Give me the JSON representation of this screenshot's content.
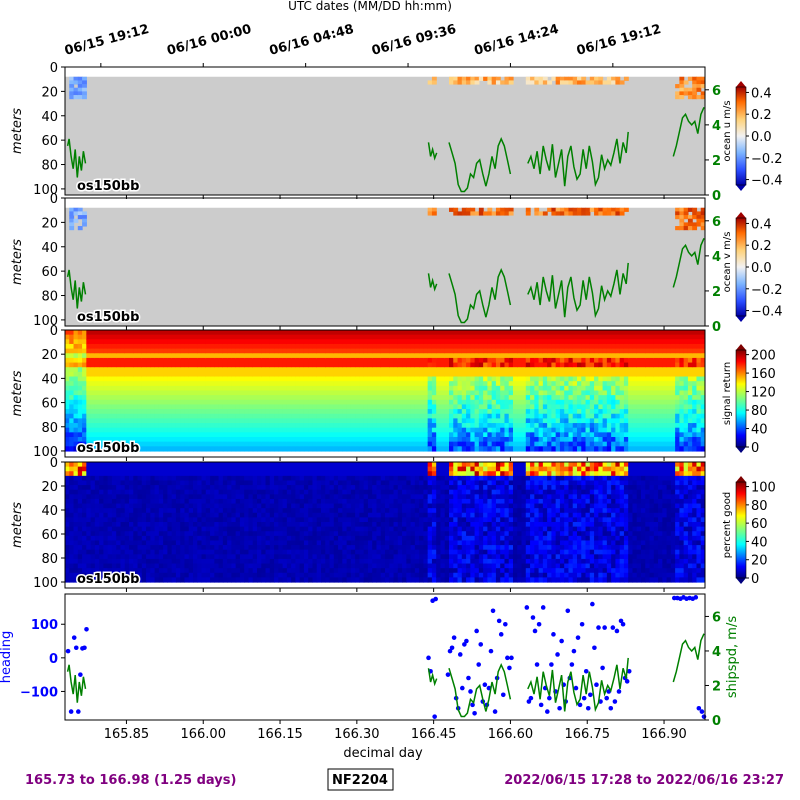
{
  "header": {
    "utc_label": "UTC dates (MM/DD hh:mm)"
  },
  "colors": {
    "axis": "#000000",
    "green": "#008000",
    "blue": "#0000ff",
    "purple": "#800080",
    "mask": "#cccccc"
  },
  "chart_data": {
    "type": "heatmap",
    "xlabel": "decimal day",
    "xlim": [
      165.73,
      166.98
    ],
    "x_ticks": [
      "165.85",
      "166.00",
      "166.15",
      "166.30",
      "166.45",
      "166.60",
      "166.75",
      "166.90"
    ],
    "x_tick_values": [
      165.85,
      166.0,
      166.15,
      166.3,
      166.45,
      166.6,
      166.75,
      166.9
    ],
    "utc_ticks": [
      "06/15 19:12",
      "06/16 00:00",
      "06/16 04:48",
      "06/16 09:36",
      "06/16 14:24",
      "06/16 19:12"
    ],
    "utc_tick_values": [
      165.8,
      166.0,
      166.2,
      166.4,
      166.6,
      166.8
    ],
    "depth": {
      "ylabel": "meters",
      "ylim": [
        105,
        0
      ],
      "ticks": [
        "0",
        "20",
        "40",
        "60",
        "80",
        "100"
      ],
      "tick_values": [
        0,
        20,
        40,
        60,
        80,
        100
      ]
    },
    "instrument": "os150bb",
    "segments": [
      [
        165.735,
        165.773
      ],
      [
        166.438,
        166.457
      ],
      [
        166.477,
        166.605
      ],
      [
        166.632,
        166.832
      ],
      [
        166.918,
        166.98
      ]
    ],
    "panels": [
      {
        "name": "ocean u",
        "colorbar_label": "ocean u m/s",
        "colorbar_ticks": [
          "0.4",
          "0.2",
          "0.0",
          "−0.2",
          "−0.4"
        ],
        "colorbar_values": [
          0.4,
          0.2,
          0.0,
          -0.2,
          -0.4
        ],
        "clim": [
          -0.45,
          0.45
        ],
        "colormap": "coolwarm"
      },
      {
        "name": "ocean v",
        "colorbar_label": "ocean v m/s",
        "colorbar_ticks": [
          "0.4",
          "0.2",
          "0.0",
          "−0.2",
          "−0.4"
        ],
        "colorbar_values": [
          0.4,
          0.2,
          0.0,
          -0.2,
          -0.4
        ],
        "clim": [
          -0.45,
          0.45
        ],
        "colormap": "coolwarm"
      },
      {
        "name": "signal return",
        "colorbar_label": "signal return",
        "colorbar_ticks": [
          "200",
          "160",
          "120",
          "80",
          "40",
          "0"
        ],
        "colorbar_values": [
          200,
          160,
          120,
          80,
          40,
          0
        ],
        "clim": [
          0,
          210
        ],
        "colormap": "jet"
      },
      {
        "name": "percent good",
        "colorbar_label": "percent good",
        "colorbar_ticks": [
          "100",
          "80",
          "60",
          "40",
          "20",
          "0"
        ],
        "colorbar_values": [
          100,
          80,
          60,
          40,
          20,
          0
        ],
        "clim": [
          0,
          105
        ],
        "colormap": "jet"
      }
    ],
    "shipspeed": {
      "ylabel": "shipspd, m/s",
      "ylim": [
        0,
        7.3
      ],
      "ticks": [
        "6",
        "4",
        "2",
        "0"
      ],
      "tick_values": [
        6,
        4,
        2,
        0
      ],
      "series": [
        {
          "x": [
            165.735,
            165.738,
            165.742,
            165.746,
            165.75,
            165.754,
            165.758,
            165.762,
            165.766,
            165.77
          ],
          "y": [
            2.8,
            3.2,
            2.2,
            1.5,
            2.6,
            1.0,
            2.2,
            1.4,
            2.5,
            1.8
          ]
        },
        {
          "x": [
            166.44,
            166.444,
            166.448,
            166.452,
            166.456
          ],
          "y": [
            3.0,
            2.2,
            2.6,
            2.1,
            2.4
          ]
        },
        {
          "x": [
            166.48,
            166.486,
            166.492,
            166.498,
            166.504,
            166.51,
            166.516,
            166.522,
            166.528,
            166.534,
            166.54,
            166.546,
            166.552,
            166.558,
            166.564,
            166.57,
            166.576,
            166.582,
            166.588,
            166.594,
            166.6
          ],
          "y": [
            3.0,
            2.4,
            1.8,
            0.6,
            0.2,
            0.2,
            0.4,
            1.2,
            1.0,
            1.8,
            2.0,
            1.2,
            0.5,
            1.2,
            2.2,
            1.5,
            2.8,
            3.2,
            2.8,
            2.0,
            1.2
          ]
        },
        {
          "x": [
            166.634,
            166.64,
            166.646,
            166.652,
            166.658,
            166.664,
            166.67,
            166.676,
            166.682,
            166.688,
            166.694,
            166.7,
            166.706,
            166.712,
            166.718,
            166.724,
            166.73,
            166.736,
            166.742,
            166.748,
            166.754,
            166.76,
            166.766,
            166.772,
            166.778,
            166.784,
            166.79,
            166.796,
            166.802,
            166.808,
            166.814,
            166.82,
            166.826,
            166.83
          ],
          "y": [
            1.8,
            2.2,
            1.5,
            2.5,
            1.2,
            2.8,
            2.0,
            1.4,
            2.9,
            1.0,
            1.8,
            2.6,
            0.5,
            2.2,
            2.8,
            1.6,
            0.9,
            1.2,
            2.6,
            1.5,
            2.8,
            1.9,
            0.6,
            1.0,
            2.3,
            1.5,
            2.0,
            1.7,
            2.4,
            3.2,
            1.8,
            3.0,
            2.4,
            3.6
          ]
        },
        {
          "x": [
            166.918,
            166.924,
            166.93,
            166.936,
            166.942,
            166.948,
            166.954,
            166.96,
            166.966,
            166.972,
            166.978
          ],
          "y": [
            2.2,
            2.8,
            3.6,
            4.4,
            4.6,
            4.2,
            4.0,
            4.2,
            3.5,
            4.6,
            5.0
          ]
        }
      ]
    },
    "heading": {
      "ylabel": "heading",
      "ylim": [
        -185,
        190
      ],
      "ticks": [
        "100",
        "0",
        "−100"
      ],
      "tick_values": [
        100,
        0,
        -100
      ],
      "points": [
        [
          165.736,
          20
        ],
        [
          165.742,
          -160
        ],
        [
          165.748,
          60
        ],
        [
          165.752,
          30
        ],
        [
          165.756,
          -160
        ],
        [
          165.76,
          -50
        ],
        [
          165.764,
          28
        ],
        [
          165.768,
          30
        ],
        [
          165.772,
          85
        ],
        [
          166.44,
          0
        ],
        [
          166.444,
          -40
        ],
        [
          166.448,
          170
        ],
        [
          166.452,
          -175
        ],
        [
          166.454,
          175
        ],
        [
          166.478,
          -50
        ],
        [
          166.482,
          20
        ],
        [
          166.486,
          30
        ],
        [
          166.49,
          60
        ],
        [
          166.494,
          -120
        ],
        [
          166.498,
          -150
        ],
        [
          166.502,
          10
        ],
        [
          166.506,
          -90
        ],
        [
          166.51,
          40
        ],
        [
          166.514,
          50
        ],
        [
          166.518,
          -60
        ],
        [
          166.522,
          -100
        ],
        [
          166.526,
          -140
        ],
        [
          166.53,
          -165
        ],
        [
          166.534,
          80
        ],
        [
          166.538,
          -20
        ],
        [
          166.542,
          40
        ],
        [
          166.546,
          -130
        ],
        [
          166.55,
          -80
        ],
        [
          166.554,
          -140
        ],
        [
          166.558,
          -90
        ],
        [
          166.562,
          20
        ],
        [
          166.566,
          140
        ],
        [
          166.57,
          -160
        ],
        [
          166.574,
          -60
        ],
        [
          166.578,
          110
        ],
        [
          166.582,
          70
        ],
        [
          166.586,
          -110
        ],
        [
          166.59,
          100
        ],
        [
          166.594,
          0
        ],
        [
          166.598,
          -30
        ],
        [
          166.602,
          0
        ],
        [
          166.632,
          150
        ],
        [
          166.636,
          -130
        ],
        [
          166.64,
          -120
        ],
        [
          166.644,
          120
        ],
        [
          166.648,
          80
        ],
        [
          166.652,
          -20
        ],
        [
          166.656,
          100
        ],
        [
          166.66,
          -140
        ],
        [
          166.664,
          150
        ],
        [
          166.668,
          -90
        ],
        [
          166.672,
          -160
        ],
        [
          166.676,
          -120
        ],
        [
          166.68,
          -20
        ],
        [
          166.684,
          70
        ],
        [
          166.688,
          -100
        ],
        [
          166.692,
          10
        ],
        [
          166.696,
          -150
        ],
        [
          166.7,
          50
        ],
        [
          166.704,
          -80
        ],
        [
          166.708,
          -130
        ],
        [
          166.712,
          140
        ],
        [
          166.716,
          -60
        ],
        [
          166.72,
          -20
        ],
        [
          166.724,
          20
        ],
        [
          166.728,
          -90
        ],
        [
          166.732,
          60
        ],
        [
          166.736,
          -140
        ],
        [
          166.74,
          100
        ],
        [
          166.744,
          -120
        ],
        [
          166.748,
          -40
        ],
        [
          166.752,
          -150
        ],
        [
          166.756,
          -110
        ],
        [
          166.76,
          160
        ],
        [
          166.764,
          30
        ],
        [
          166.768,
          -80
        ],
        [
          166.772,
          90
        ],
        [
          166.776,
          -130
        ],
        [
          166.78,
          -30
        ],
        [
          166.784,
          90
        ],
        [
          166.788,
          -120
        ],
        [
          166.792,
          -100
        ],
        [
          166.796,
          -150
        ],
        [
          166.8,
          90
        ],
        [
          166.804,
          -130
        ],
        [
          166.808,
          80
        ],
        [
          166.812,
          -100
        ],
        [
          166.816,
          110
        ],
        [
          166.82,
          100
        ],
        [
          166.824,
          -60
        ],
        [
          166.828,
          -70
        ],
        [
          166.832,
          -40
        ],
        [
          166.92,
          178
        ],
        [
          166.926,
          178
        ],
        [
          166.932,
          176
        ],
        [
          166.938,
          180
        ],
        [
          166.944,
          176
        ],
        [
          166.95,
          178
        ],
        [
          166.956,
          176
        ],
        [
          166.962,
          180
        ],
        [
          166.968,
          -150
        ],
        [
          166.974,
          -160
        ],
        [
          166.978,
          -175
        ]
      ]
    }
  },
  "footer": {
    "range_days": "165.73 to 166.98 (1.25 days)",
    "cruise_id": "NF2204",
    "date_range": "2022/06/15 17:28 to 2022/06/16 23:27"
  }
}
